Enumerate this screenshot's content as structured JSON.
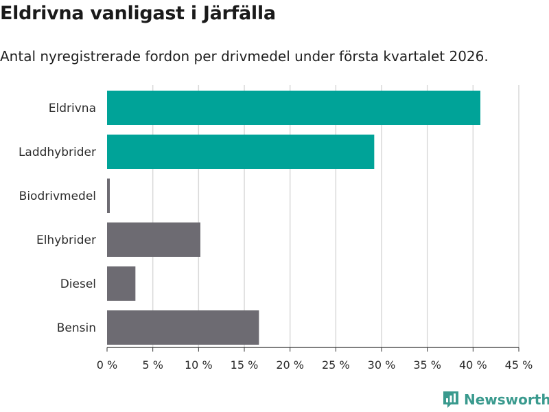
{
  "header": {
    "title": "Eldrivna vanligast i Järfälla",
    "subtitle": "Antal nyregistrerade fordon per drivmedel under första kvartalet 2026."
  },
  "brand": {
    "name": "Newsworthy",
    "color": "#3a9a8e",
    "icon": "newsworthy-logo-icon"
  },
  "chart_data": {
    "type": "bar",
    "orientation": "horizontal",
    "title": "Eldrivna vanligast i Järfälla",
    "subtitle": "Antal nyregistrerade fordon per drivmedel under första kvartalet 2026.",
    "xlabel": "",
    "ylabel": "",
    "unit": " %",
    "xlim": [
      0,
      45
    ],
    "xticks": [
      0,
      5,
      10,
      15,
      20,
      25,
      30,
      35,
      40,
      45
    ],
    "xtick_labels": [
      "0 %",
      "5 %",
      "10 %",
      "15 %",
      "20 %",
      "25 %",
      "30 %",
      "35 %",
      "40 %",
      "45 %"
    ],
    "grid": true,
    "categories": [
      "Eldrivna",
      "Laddhybrider",
      "Biodrivmedel",
      "Elhybrider",
      "Diesel",
      "Bensin"
    ],
    "values": [
      40.8,
      29.2,
      0.3,
      10.2,
      3.1,
      16.6
    ],
    "colors": [
      "#00a398",
      "#00a398",
      "#6d6b72",
      "#6d6b72",
      "#6d6b72",
      "#6d6b72"
    ],
    "grid_color": "#d9d9d9",
    "axis_color": "#333333"
  }
}
